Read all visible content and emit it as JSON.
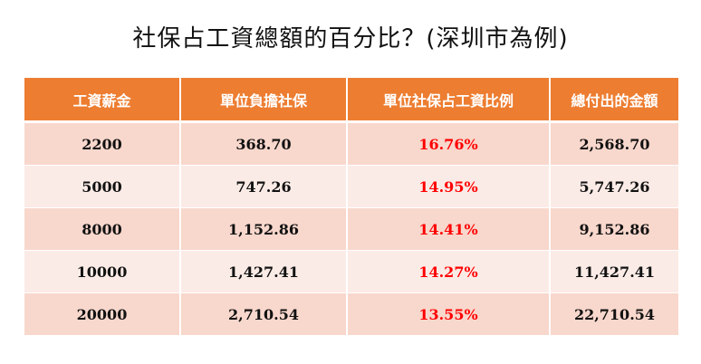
{
  "title": "社保占工資總額的百分比？(深圳市為例)",
  "colors": {
    "header_bg": "#ed7d31",
    "row_dark": "#f8d7cc",
    "row_light": "#fbebe6",
    "ratio_text": "#ff0000"
  },
  "table": {
    "headers": [
      "工資薪金",
      "單位負擔社保",
      "單位社保占工資比例",
      "總付出的金額"
    ],
    "rows": [
      [
        "2200",
        "368.70",
        "16.76%",
        "2,568.70"
      ],
      [
        "5000",
        "747.26",
        "14.95%",
        "5,747.26"
      ],
      [
        "8000",
        "1,152.86",
        "14.41%",
        "9,152.86"
      ],
      [
        "10000",
        "1,427.41",
        "14.27%",
        "11,427.41"
      ],
      [
        "20000",
        "2,710.54",
        "13.55%",
        "22,710.54"
      ]
    ]
  }
}
